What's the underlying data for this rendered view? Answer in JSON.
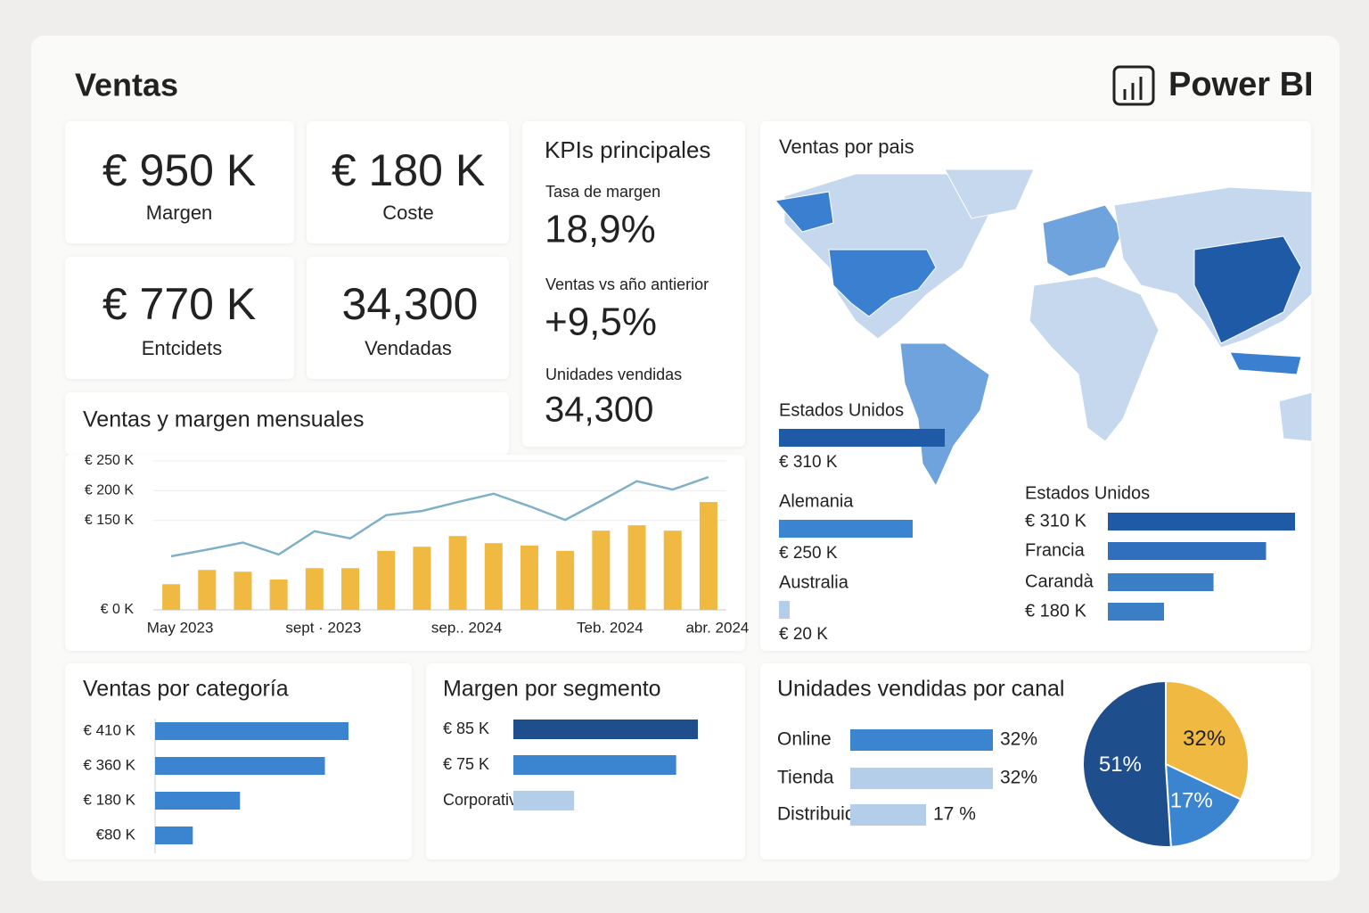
{
  "header": {
    "title": "Ventas",
    "brand": "Power BI"
  },
  "kpi_cards": [
    {
      "value": "€ 950 K",
      "label": "Margen"
    },
    {
      "value": "€ 180 K",
      "label": "Coste"
    },
    {
      "value": "€ 770 K",
      "label": "Entcidets"
    },
    {
      "value": "34,300",
      "label": "Vendadas"
    }
  ],
  "kpi_panel": {
    "title": "KPIs principales",
    "items": [
      {
        "label": "Tasa de margen",
        "value": "18,9%"
      },
      {
        "label": "Ventas vs año antierior",
        "value": "+9,5%"
      },
      {
        "label": "Unidades vendidas",
        "value": "34,300"
      }
    ]
  },
  "chart_data": [
    {
      "type": "combo",
      "title": "Ventas y margen mensuales",
      "categories": [
        "May 2023",
        null,
        null,
        null,
        "sept · 2023",
        null,
        null,
        null,
        "sep.. 2024",
        null,
        null,
        null,
        "Teb. 2024",
        null,
        null,
        "abr. 2024"
      ],
      "series": [
        {
          "type": "bar",
          "color": "#f0b942",
          "values": [
            43,
            67,
            64,
            51,
            70,
            70,
            99,
            106,
            124,
            112,
            108,
            99,
            133,
            142,
            133,
            181
          ]
        },
        {
          "type": "line",
          "color": "#7fb0c8",
          "values": [
            90,
            101,
            113,
            93,
            132,
            120,
            159,
            166,
            181,
            195,
            174,
            151,
            183,
            216,
            202,
            223
          ]
        }
      ],
      "ylim": [
        0,
        250
      ],
      "yticks": [
        {
          "value": 250,
          "label": "€ 250 K"
        },
        {
          "value": 200,
          "label": "€ 200 K"
        },
        {
          "value": 150,
          "label": "€ 150 K"
        },
        {
          "value": 0,
          "label": "€ 0 K"
        }
      ],
      "grid": true
    },
    {
      "type": "labeled-bars",
      "title": "Ventas por pais",
      "categories": [
        "Estados Unidos",
        "Alemania",
        "Australia"
      ],
      "values": [
        310,
        250,
        20
      ],
      "value_labels": [
        "€ 310 K",
        "€ 250 K",
        "€ 20 K"
      ],
      "colors": [
        "#1f5aa6",
        "#3a84d0",
        "#b4cde8"
      ]
    },
    {
      "type": "row-bars",
      "subtitle": "Estados Unidos",
      "categories": [
        "€ 310 K",
        "Francia",
        "Carandà",
        "€ 180 K"
      ],
      "values": [
        310,
        262,
        175,
        93
      ],
      "colors": [
        "#1f5aa6",
        "#2f6fbd",
        "#3a7ec6",
        "#3a7ec6"
      ]
    },
    {
      "type": "row-bars",
      "title": "Ventas por categoría",
      "values": [
        410,
        360,
        180,
        80
      ],
      "value_labels": [
        "€ 410 K",
        "€ 360 K",
        "€ 180 K",
        "€80 K"
      ],
      "color": "#3a84d0"
    },
    {
      "type": "row-bars",
      "title": "Margen por segmento",
      "categories": [
        null,
        null,
        "Corporativo"
      ],
      "values": [
        85,
        75,
        28
      ],
      "value_labels": [
        "€ 85 K",
        "€ 75 K",
        null
      ],
      "colors": [
        "#1f4e8c",
        "#3a84d0",
        "#b4cde8"
      ]
    },
    {
      "type": "row-bars",
      "title": "Unidades vendidas por canal",
      "categories": [
        "Online",
        "Tienda",
        "Distribuidor"
      ],
      "values": [
        32,
        32,
        17
      ],
      "value_labels": [
        "32%",
        "32%",
        "17 %"
      ],
      "colors": [
        "#3a84d0",
        "#b4cde8",
        "#b4cde8"
      ]
    },
    {
      "type": "pie",
      "values": [
        32,
        17,
        51
      ],
      "value_labels": [
        "32%",
        "17%",
        "51%"
      ],
      "colors": [
        "#f0b942",
        "#3a84d0",
        "#1f4e8c"
      ]
    }
  ]
}
